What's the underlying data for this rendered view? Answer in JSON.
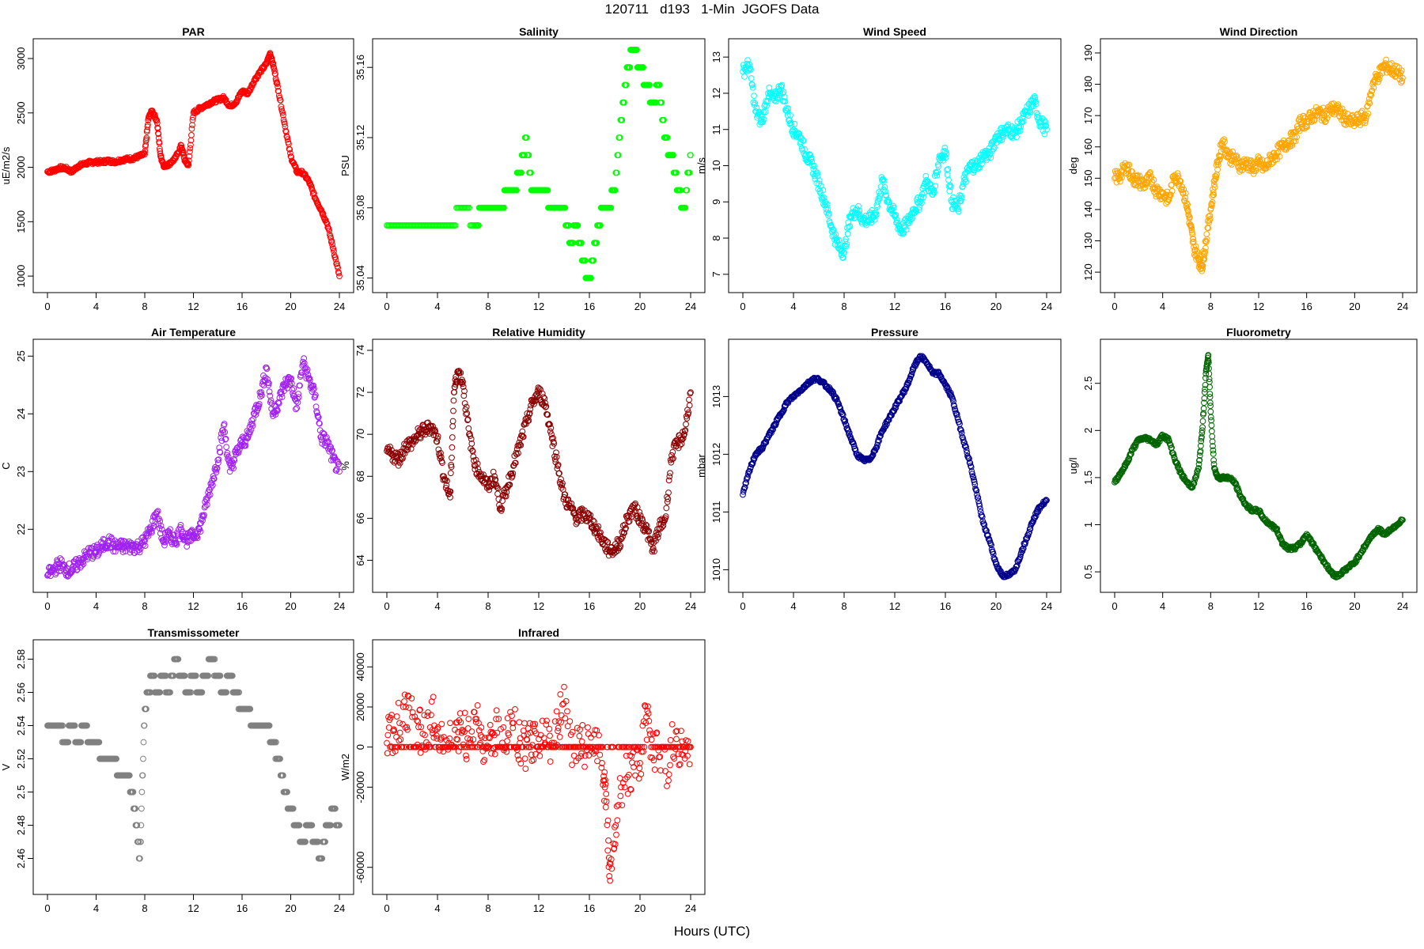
{
  "title": "120711   d193   1-Min  JGOFS Data",
  "xlabel": "Hours (UTC)",
  "x_ticks": [
    0,
    4,
    8,
    12,
    16,
    20,
    24
  ],
  "chart_data": [
    {
      "type": "scatter",
      "title": "PAR",
      "ylabel": "uE/m2/s",
      "color": "#ff0000",
      "xlim": [
        0,
        24
      ],
      "ylim": [
        950,
        3080
      ],
      "y_ticks": [
        1000,
        1500,
        2000,
        2500,
        3000
      ],
      "x": [
        0,
        0.5,
        1,
        1.5,
        2,
        2.5,
        3,
        3.5,
        4,
        4.5,
        5,
        5.5,
        6,
        6.5,
        7,
        7.5,
        8,
        8.3,
        8.6,
        9,
        9.3,
        9.6,
        10,
        10.5,
        11,
        11.3,
        11.6,
        12,
        12.5,
        13,
        13.5,
        14,
        14.5,
        15,
        15.5,
        16,
        16.5,
        17,
        17.5,
        18,
        18.3,
        18.6,
        19,
        19.5,
        20,
        20.5,
        21,
        21.5,
        22,
        22.5,
        23,
        23.5,
        24
      ],
      "y": [
        1960,
        1970,
        1995,
        1990,
        1960,
        2010,
        2030,
        2045,
        2050,
        2050,
        2060,
        2050,
        2065,
        2075,
        2080,
        2100,
        2120,
        2450,
        2520,
        2430,
        2100,
        2010,
        2030,
        2080,
        2200,
        2060,
        2020,
        2500,
        2540,
        2570,
        2600,
        2620,
        2640,
        2560,
        2600,
        2700,
        2680,
        2800,
        2880,
        2950,
        3050,
        2920,
        2700,
        2400,
        2100,
        1960,
        1950,
        1870,
        1720,
        1610,
        1480,
        1250,
        1000
      ]
    },
    {
      "type": "scatter",
      "title": "Salinity",
      "ylabel": "PSU",
      "color": "#00ff00",
      "xlim": [
        0,
        24
      ],
      "ylim": [
        35.038,
        35.17
      ],
      "y_ticks": [
        35.04,
        35.08,
        35.12,
        35.16
      ],
      "x": [
        0,
        1,
        2,
        3,
        4,
        5,
        6,
        7,
        7.5,
        8,
        8.5,
        9,
        9.5,
        10,
        10.5,
        11,
        11.5,
        12,
        12.5,
        13,
        13.5,
        14,
        14.5,
        15,
        15.5,
        16,
        16.5,
        17,
        17.5,
        18,
        18.5,
        19,
        19.5,
        20,
        20.5,
        21,
        21.5,
        22,
        22.5,
        23,
        23.5,
        24
      ],
      "y": [
        35.07,
        35.07,
        35.07,
        35.07,
        35.07,
        35.07,
        35.08,
        35.07,
        35.08,
        35.08,
        35.08,
        35.08,
        35.09,
        35.09,
        35.1,
        35.12,
        35.09,
        35.09,
        35.09,
        35.08,
        35.08,
        35.08,
        35.06,
        35.07,
        35.05,
        35.04,
        35.06,
        35.08,
        35.08,
        35.09,
        35.13,
        35.16,
        35.17,
        35.16,
        35.15,
        35.14,
        35.15,
        35.12,
        35.11,
        35.09,
        35.08,
        35.11
      ]
    },
    {
      "type": "scatter",
      "title": "Wind Speed",
      "ylabel": "m/s",
      "color": "#00ffff",
      "xlim": [
        0,
        24
      ],
      "ylim": [
        6.8,
        13.2
      ],
      "y_ticks": [
        7,
        8,
        9,
        10,
        11,
        12,
        13
      ],
      "x": [
        0,
        0.5,
        1,
        1.5,
        2,
        2.5,
        3,
        3.5,
        4,
        4.5,
        5,
        5.5,
        6,
        6.5,
        7,
        7.5,
        8,
        8.5,
        9,
        9.5,
        10,
        10.5,
        11,
        11.5,
        12,
        12.5,
        13,
        13.5,
        14,
        14.5,
        15,
        15.5,
        16,
        16.5,
        17,
        17.5,
        18,
        18.5,
        19,
        19.5,
        20,
        20.5,
        21,
        21.5,
        22,
        22.5,
        23,
        23.5,
        24
      ],
      "y": [
        12.6,
        12.8,
        11.5,
        11.2,
        12.0,
        11.8,
        12.2,
        11.5,
        11.0,
        10.8,
        10.3,
        10.0,
        9.5,
        9.0,
        8.3,
        7.8,
        7.6,
        8.6,
        8.8,
        8.5,
        8.5,
        8.7,
        9.6,
        9.0,
        8.6,
        8.2,
        8.4,
        8.8,
        9.0,
        9.6,
        9.2,
        10.2,
        10.4,
        9.0,
        8.8,
        9.6,
        10.0,
        10.0,
        10.3,
        10.3,
        10.8,
        10.9,
        11.0,
        10.9,
        11.2,
        11.5,
        11.8,
        11.2,
        11.0
      ]
    },
    {
      "type": "scatter",
      "title": "Wind Direction",
      "ylabel": "deg",
      "color": "#ffa500",
      "xlim": [
        0,
        24
      ],
      "ylim": [
        117,
        191
      ],
      "y_ticks": [
        120,
        130,
        140,
        150,
        160,
        170,
        180,
        190
      ],
      "x": [
        0,
        0.5,
        1,
        1.5,
        2,
        2.5,
        3,
        3.5,
        4,
        4.5,
        5,
        5.5,
        6,
        6.3,
        6.6,
        7,
        7.3,
        7.6,
        8,
        8.3,
        8.6,
        9,
        9.5,
        10,
        10.5,
        11,
        11.5,
        12,
        12.5,
        13,
        13.5,
        14,
        14.5,
        15,
        15.5,
        16,
        16.5,
        17,
        17.5,
        18,
        18.5,
        19,
        19.5,
        20,
        20.5,
        21,
        21.5,
        22,
        22.5,
        23,
        23.5,
        24
      ],
      "y": [
        150,
        151,
        154,
        150,
        149,
        148,
        150,
        146,
        145,
        143,
        151,
        149,
        142,
        135,
        128,
        124,
        122,
        130,
        140,
        148,
        155,
        162,
        157,
        156,
        154,
        155,
        153,
        155,
        153,
        156,
        158,
        160,
        162,
        163,
        168,
        168,
        170,
        171,
        170,
        172,
        172,
        170,
        168,
        168,
        169,
        170,
        180,
        183,
        186,
        185,
        184,
        182
      ]
    },
    {
      "type": "scatter",
      "title": "Air Temperature",
      "ylabel": "C",
      "color": "#a020f0",
      "xlim": [
        0,
        24
      ],
      "ylim": [
        21.1,
        25.1
      ],
      "y_ticks": [
        22,
        23,
        24,
        25
      ],
      "x": [
        0,
        0.5,
        1,
        1.5,
        2,
        2.5,
        3,
        3.5,
        4,
        4.5,
        5,
        5.5,
        6,
        6.5,
        7,
        7.5,
        8,
        8.5,
        9,
        9.5,
        10,
        10.5,
        11,
        11.5,
        12,
        12.5,
        13,
        13.5,
        14,
        14.5,
        15,
        15.5,
        16,
        16.5,
        17,
        17.5,
        18,
        18.5,
        19,
        19.5,
        20,
        20.5,
        21,
        21.5,
        22,
        22.5,
        23,
        23.5,
        24
      ],
      "y": [
        21.2,
        21.3,
        21.4,
        21.3,
        21.3,
        21.4,
        21.5,
        21.6,
        21.6,
        21.7,
        21.8,
        21.7,
        21.7,
        21.7,
        21.7,
        21.7,
        21.8,
        22.0,
        22.3,
        21.8,
        21.9,
        21.8,
        22.0,
        21.8,
        21.9,
        22.0,
        22.4,
        22.8,
        23.2,
        23.8,
        23.0,
        23.3,
        23.5,
        23.6,
        24.0,
        24.3,
        24.8,
        24.0,
        24.2,
        24.5,
        24.6,
        24.1,
        24.9,
        24.6,
        24.3,
        23.6,
        23.5,
        23.2,
        23.0
      ]
    },
    {
      "type": "scatter",
      "title": "Relative Humidity",
      "ylabel": "%",
      "color": "#8b0000",
      "xlim": [
        0,
        24
      ],
      "ylim": [
        63,
        74
      ],
      "y_ticks": [
        64,
        66,
        68,
        70,
        72,
        74
      ],
      "x": [
        0,
        0.5,
        1,
        1.5,
        2,
        2.5,
        3,
        3.5,
        4,
        4.5,
        5,
        5.3,
        5.6,
        6,
        6.5,
        7,
        7.5,
        8,
        8.5,
        9,
        9.5,
        10,
        10.5,
        11,
        11.5,
        12,
        12.5,
        13,
        13.5,
        14,
        14.5,
        15,
        15.5,
        16,
        16.5,
        17,
        17.5,
        18,
        18.5,
        19,
        19.5,
        20,
        20.5,
        21,
        21.5,
        22,
        22.5,
        23,
        23.5,
        24
      ],
      "y": [
        69.2,
        69.0,
        68.8,
        69.5,
        69.6,
        70.0,
        70.2,
        70.4,
        69.8,
        68.0,
        67.0,
        72.0,
        73.0,
        72.5,
        70.0,
        68.5,
        68.0,
        67.5,
        68.0,
        66.5,
        67.5,
        68.5,
        69.5,
        70.5,
        71.5,
        72.0,
        71.5,
        70.0,
        68.5,
        67.0,
        66.5,
        66.0,
        66.2,
        66.0,
        65.5,
        65.0,
        64.5,
        64.5,
        65.0,
        66.0,
        66.5,
        66.0,
        65.5,
        64.5,
        65.5,
        66.0,
        69.0,
        69.6,
        70.0,
        72.0
      ]
    },
    {
      "type": "scatter",
      "title": "Pressure",
      "ylabel": "mbar",
      "color": "#00008b",
      "xlim": [
        0,
        24
      ],
      "ylim": [
        1009.8,
        1013.8
      ],
      "y_ticks": [
        1010,
        1011,
        1012,
        1013
      ],
      "x": [
        0,
        0.5,
        1,
        1.5,
        2,
        2.5,
        3,
        3.5,
        4,
        4.5,
        5,
        5.5,
        6,
        6.5,
        7,
        7.5,
        8,
        8.5,
        9,
        9.5,
        10,
        10.5,
        11,
        11.5,
        12,
        12.5,
        13,
        13.5,
        14,
        14.5,
        15,
        15.5,
        16,
        16.5,
        17,
        17.5,
        18,
        18.5,
        19,
        19.5,
        20,
        20.5,
        21,
        21.5,
        22,
        22.5,
        23,
        23.5,
        24
      ],
      "y": [
        1011.3,
        1011.7,
        1012.0,
        1012.1,
        1012.3,
        1012.5,
        1012.7,
        1012.9,
        1013.0,
        1013.1,
        1013.2,
        1013.3,
        1013.3,
        1013.2,
        1013.1,
        1012.9,
        1012.6,
        1012.3,
        1012.0,
        1011.9,
        1011.9,
        1012.1,
        1012.4,
        1012.6,
        1012.8,
        1013.0,
        1013.2,
        1013.5,
        1013.7,
        1013.6,
        1013.4,
        1013.4,
        1013.2,
        1013.0,
        1012.6,
        1012.2,
        1011.8,
        1011.3,
        1010.8,
        1010.5,
        1010.1,
        1009.9,
        1009.9,
        1010.0,
        1010.3,
        1010.6,
        1010.9,
        1011.1,
        1011.2
      ]
    },
    {
      "type": "scatter",
      "title": "Fluorometry",
      "ylabel": "ug/l",
      "color": "#006400",
      "xlim": [
        0,
        24
      ],
      "ylim": [
        0.4,
        2.85
      ],
      "y_ticks": [
        0.5,
        1.0,
        1.5,
        2.0,
        2.5
      ],
      "x": [
        0,
        0.5,
        1,
        1.5,
        2,
        2.5,
        3,
        3.5,
        4,
        4.5,
        5,
        5.5,
        6,
        6.5,
        7,
        7.3,
        7.6,
        7.8,
        8,
        8.3,
        8.6,
        9,
        9.5,
        10,
        10.5,
        11,
        11.5,
        12,
        12.5,
        13,
        13.5,
        14,
        14.5,
        15,
        15.5,
        16,
        16.5,
        17,
        17.5,
        18,
        18.5,
        19,
        19.5,
        20,
        20.5,
        21,
        21.5,
        22,
        22.5,
        23,
        23.5,
        24
      ],
      "y": [
        1.45,
        1.55,
        1.65,
        1.8,
        1.9,
        1.92,
        1.9,
        1.85,
        1.95,
        1.9,
        1.7,
        1.55,
        1.45,
        1.4,
        1.6,
        2.0,
        2.6,
        2.8,
        2.2,
        1.6,
        1.5,
        1.5,
        1.5,
        1.45,
        1.3,
        1.2,
        1.15,
        1.15,
        1.05,
        1.0,
        0.95,
        0.8,
        0.75,
        0.75,
        0.8,
        0.9,
        0.8,
        0.7,
        0.6,
        0.5,
        0.45,
        0.5,
        0.55,
        0.6,
        0.7,
        0.8,
        0.9,
        0.95,
        0.9,
        0.95,
        1.0,
        1.05
      ]
    },
    {
      "type": "scatter",
      "title": "Transmissometer",
      "ylabel": "V",
      "color": "#808080",
      "xlim": [
        0,
        24
      ],
      "ylim": [
        2.445,
        2.585
      ],
      "y_ticks": [
        2.46,
        2.48,
        2.5,
        2.52,
        2.54,
        2.56,
        2.58
      ],
      "x": [
        0,
        0.5,
        1,
        1.5,
        2,
        2.5,
        3,
        3.5,
        4,
        4.5,
        5,
        5.5,
        6,
        6.5,
        7,
        7.3,
        7.6,
        8,
        8.3,
        8.6,
        9,
        9.5,
        10,
        10.5,
        11,
        11.5,
        12,
        12.5,
        13,
        13.5,
        14,
        14.5,
        15,
        15.5,
        16,
        16.5,
        17,
        17.5,
        18,
        18.5,
        19,
        19.5,
        20,
        20.5,
        21,
        21.5,
        22,
        22.5,
        23,
        23.5,
        24
      ],
      "y": [
        2.54,
        2.54,
        2.54,
        2.53,
        2.54,
        2.53,
        2.54,
        2.53,
        2.53,
        2.52,
        2.52,
        2.52,
        2.51,
        2.51,
        2.5,
        2.48,
        2.46,
        2.55,
        2.56,
        2.57,
        2.56,
        2.57,
        2.56,
        2.58,
        2.57,
        2.56,
        2.57,
        2.56,
        2.57,
        2.58,
        2.57,
        2.56,
        2.57,
        2.56,
        2.55,
        2.55,
        2.54,
        2.54,
        2.54,
        2.53,
        2.52,
        2.5,
        2.49,
        2.48,
        2.47,
        2.48,
        2.47,
        2.46,
        2.48,
        2.49,
        2.48
      ]
    },
    {
      "type": "scatter",
      "title": "Infrared",
      "ylabel": "W/m2",
      "color": "#ff0000",
      "xlim": [
        0,
        24
      ],
      "ylim": [
        -68000,
        48000
      ],
      "y_ticks": [
        -60000,
        -20000,
        0,
        20000,
        40000
      ],
      "x": [
        0,
        0.5,
        1,
        1.5,
        2,
        2.5,
        3,
        3.5,
        4,
        4.5,
        5,
        5.5,
        6,
        6.5,
        7,
        7.5,
        8,
        8.5,
        9,
        9.5,
        10,
        10.5,
        11,
        11.5,
        12,
        12.5,
        13,
        13.5,
        14,
        14.5,
        15,
        15.5,
        16,
        16.5,
        17,
        17.3,
        17.6,
        18,
        18.5,
        19,
        19.5,
        20,
        20.5,
        21,
        21.5,
        22,
        22.5,
        23,
        23.5,
        24
      ],
      "y": [
        2000,
        8000,
        12000,
        20000,
        15000,
        10000,
        6000,
        16000,
        9000,
        5000,
        12000,
        4000,
        8000,
        2000,
        14000,
        5000,
        0,
        6000,
        9000,
        3000,
        12000,
        2000,
        0,
        1000,
        4000,
        2000,
        1000,
        8000,
        30000,
        0,
        0,
        0,
        0,
        -2000,
        -8000,
        -30000,
        -58000,
        -40000,
        -20000,
        -15000,
        -10000,
        -8000,
        15000,
        0,
        -5000,
        -12000,
        0,
        0,
        0,
        0
      ]
    }
  ]
}
